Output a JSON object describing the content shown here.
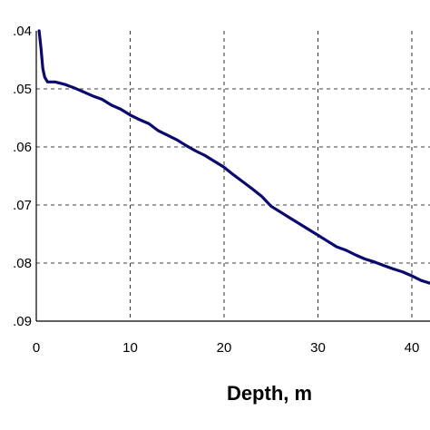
{
  "chart_data": {
    "type": "line",
    "title": "",
    "xlabel": "Depth, m",
    "ylabel": "",
    "x_ticks": [
      "0",
      "10",
      "20",
      "30",
      "40"
    ],
    "y_ticks": [
      ".04",
      ".05",
      ".06",
      ".07",
      ".08",
      ".09"
    ],
    "xlim": [
      0,
      42
    ],
    "ylim": [
      0.04,
      0.09
    ],
    "y_inverted": true,
    "grid": true,
    "series": [
      {
        "name": "",
        "color": "#0a0a6e",
        "x": [
          0.3,
          0.5,
          0.7,
          0.9,
          1.2,
          2,
          3,
          4,
          5,
          6,
          7,
          8,
          9,
          10,
          11,
          12,
          13,
          14,
          15,
          16,
          17,
          18,
          19,
          20,
          21,
          22,
          23,
          24,
          25,
          26,
          27,
          28,
          29,
          30,
          31,
          32,
          33,
          34,
          35,
          36,
          37,
          38,
          39,
          40,
          41,
          42
        ],
        "y": [
          0.04,
          0.043,
          0.0465,
          0.048,
          0.0488,
          0.0488,
          0.0492,
          0.0498,
          0.0505,
          0.0512,
          0.0518,
          0.0528,
          0.0535,
          0.0545,
          0.0553,
          0.056,
          0.0572,
          0.058,
          0.0588,
          0.0598,
          0.0607,
          0.0615,
          0.0625,
          0.0635,
          0.0648,
          0.066,
          0.0672,
          0.0685,
          0.0702,
          0.0712,
          0.0722,
          0.0732,
          0.0742,
          0.0752,
          0.0762,
          0.0772,
          0.0778,
          0.0786,
          0.0793,
          0.0798,
          0.0804,
          0.081,
          0.0815,
          0.0822,
          0.083,
          0.0835
        ]
      }
    ]
  }
}
